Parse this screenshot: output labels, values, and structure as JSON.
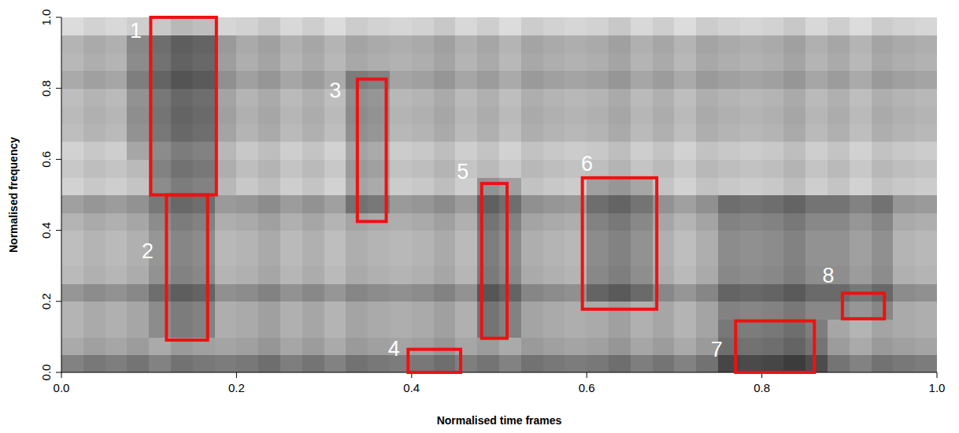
{
  "chart_data": {
    "type": "heatmap",
    "x_label": "Normalised time frames",
    "y_label": "Normalised frequency",
    "xlim": [
      0,
      1
    ],
    "ylim": [
      0,
      1
    ],
    "zlim": [
      0,
      1
    ],
    "xticks": [
      {
        "value": 0,
        "label": "0.0"
      },
      0.2,
      0.4,
      0.6,
      0.8,
      {
        "value": 1,
        "label": "1.0"
      }
    ],
    "yticks": [
      {
        "value": 0,
        "label": "0.0"
      },
      0.2,
      0.4,
      0.6,
      0.8,
      {
        "value": 1,
        "label": "1.0"
      }
    ],
    "cells": [
      [
        0.55,
        0.6,
        0.57,
        0.62,
        0.55,
        0.63,
        0.6,
        0.58,
        0.6,
        0.65,
        0.57,
        0.62,
        0.55,
        0.63,
        0.6,
        0.58,
        0.6,
        0.65,
        0.57,
        0.62,
        0.55,
        0.63,
        0.6,
        0.58,
        0.6,
        0.65,
        0.57,
        0.62,
        0.55,
        0.63,
        0.85,
        0.83,
        0.85,
        0.9,
        0.82,
        0.62,
        0.55,
        0.63,
        0.6,
        0.58
      ],
      [
        0.35,
        0.4,
        0.37,
        0.42,
        0.35,
        0.43,
        0.4,
        0.38,
        0.4,
        0.45,
        0.37,
        0.42,
        0.35,
        0.43,
        0.4,
        0.38,
        0.4,
        0.45,
        0.37,
        0.42,
        0.35,
        0.43,
        0.4,
        0.38,
        0.4,
        0.45,
        0.37,
        0.42,
        0.35,
        0.43,
        0.65,
        0.63,
        0.65,
        0.7,
        0.62,
        0.42,
        0.35,
        0.43,
        0.4,
        0.38
      ],
      [
        0.3,
        0.35,
        0.32,
        0.37,
        0.5,
        0.58,
        0.55,
        0.33,
        0.35,
        0.4,
        0.32,
        0.37,
        0.3,
        0.38,
        0.35,
        0.33,
        0.35,
        0.4,
        0.32,
        0.62,
        0.55,
        0.38,
        0.35,
        0.33,
        0.35,
        0.4,
        0.32,
        0.37,
        0.3,
        0.38,
        0.6,
        0.58,
        0.6,
        0.65,
        0.57,
        0.37,
        0.3,
        0.38,
        0.35,
        0.33
      ],
      [
        0.3,
        0.35,
        0.32,
        0.37,
        0.5,
        0.58,
        0.55,
        0.33,
        0.35,
        0.4,
        0.32,
        0.37,
        0.3,
        0.38,
        0.35,
        0.33,
        0.35,
        0.4,
        0.32,
        0.62,
        0.55,
        0.38,
        0.35,
        0.33,
        0.35,
        0.4,
        0.32,
        0.37,
        0.3,
        0.38,
        0.55,
        0.53,
        0.55,
        0.6,
        0.52,
        0.52,
        0.45,
        0.53,
        0.35,
        0.33
      ],
      [
        0.45,
        0.5,
        0.47,
        0.52,
        0.65,
        0.73,
        0.7,
        0.48,
        0.5,
        0.55,
        0.47,
        0.52,
        0.45,
        0.53,
        0.5,
        0.48,
        0.5,
        0.55,
        0.47,
        0.77,
        0.7,
        0.53,
        0.5,
        0.48,
        0.7,
        0.75,
        0.67,
        0.52,
        0.45,
        0.53,
        0.7,
        0.68,
        0.7,
        0.75,
        0.67,
        0.67,
        0.6,
        0.68,
        0.5,
        0.48
      ],
      [
        0.27,
        0.32,
        0.29,
        0.34,
        0.47,
        0.55,
        0.52,
        0.3,
        0.32,
        0.37,
        0.29,
        0.34,
        0.27,
        0.35,
        0.32,
        0.3,
        0.32,
        0.37,
        0.29,
        0.59,
        0.52,
        0.35,
        0.32,
        0.3,
        0.52,
        0.57,
        0.49,
        0.34,
        0.27,
        0.35,
        0.52,
        0.5,
        0.52,
        0.57,
        0.49,
        0.49,
        0.42,
        0.5,
        0.32,
        0.3
      ],
      [
        0.25,
        0.3,
        0.27,
        0.32,
        0.45,
        0.53,
        0.5,
        0.28,
        0.3,
        0.35,
        0.27,
        0.32,
        0.25,
        0.33,
        0.3,
        0.28,
        0.3,
        0.35,
        0.27,
        0.57,
        0.5,
        0.33,
        0.3,
        0.28,
        0.5,
        0.55,
        0.47,
        0.32,
        0.25,
        0.33,
        0.5,
        0.48,
        0.5,
        0.55,
        0.47,
        0.47,
        0.4,
        0.48,
        0.3,
        0.28
      ],
      [
        0.25,
        0.3,
        0.27,
        0.32,
        0.45,
        0.53,
        0.5,
        0.28,
        0.3,
        0.35,
        0.27,
        0.32,
        0.25,
        0.33,
        0.3,
        0.28,
        0.3,
        0.35,
        0.27,
        0.57,
        0.5,
        0.33,
        0.3,
        0.28,
        0.5,
        0.55,
        0.47,
        0.32,
        0.25,
        0.33,
        0.5,
        0.48,
        0.5,
        0.55,
        0.47,
        0.47,
        0.4,
        0.48,
        0.3,
        0.28
      ],
      [
        0.3,
        0.35,
        0.32,
        0.37,
        0.5,
        0.58,
        0.55,
        0.33,
        0.35,
        0.4,
        0.32,
        0.37,
        0.3,
        0.38,
        0.35,
        0.33,
        0.35,
        0.4,
        0.32,
        0.62,
        0.55,
        0.38,
        0.35,
        0.33,
        0.55,
        0.6,
        0.52,
        0.37,
        0.3,
        0.38,
        0.55,
        0.53,
        0.55,
        0.6,
        0.52,
        0.52,
        0.45,
        0.53,
        0.35,
        0.33
      ],
      [
        0.4,
        0.45,
        0.42,
        0.47,
        0.6,
        0.68,
        0.65,
        0.43,
        0.45,
        0.5,
        0.42,
        0.47,
        0.4,
        0.63,
        0.6,
        0.43,
        0.45,
        0.5,
        0.42,
        0.72,
        0.65,
        0.48,
        0.45,
        0.43,
        0.65,
        0.7,
        0.62,
        0.47,
        0.4,
        0.48,
        0.65,
        0.63,
        0.65,
        0.7,
        0.62,
        0.62,
        0.55,
        0.63,
        0.45,
        0.43
      ],
      [
        0.15,
        0.2,
        0.17,
        0.22,
        0.5,
        0.58,
        0.55,
        0.28,
        0.2,
        0.25,
        0.17,
        0.22,
        0.15,
        0.38,
        0.35,
        0.18,
        0.2,
        0.25,
        0.17,
        0.47,
        0.4,
        0.23,
        0.2,
        0.18,
        0.4,
        0.45,
        0.37,
        0.22,
        0.15,
        0.23,
        0.2,
        0.18,
        0.2,
        0.25,
        0.17,
        0.22,
        0.15,
        0.23,
        0.2,
        0.18
      ],
      [
        0.2,
        0.25,
        0.22,
        0.27,
        0.55,
        0.63,
        0.6,
        0.33,
        0.25,
        0.3,
        0.22,
        0.27,
        0.2,
        0.43,
        0.4,
        0.23,
        0.25,
        0.3,
        0.22,
        0.27,
        0.2,
        0.28,
        0.25,
        0.23,
        0.25,
        0.3,
        0.22,
        0.27,
        0.2,
        0.28,
        0.25,
        0.23,
        0.25,
        0.3,
        0.22,
        0.27,
        0.2,
        0.28,
        0.25,
        0.23
      ],
      [
        0.15,
        0.2,
        0.17,
        0.37,
        0.5,
        0.58,
        0.55,
        0.28,
        0.2,
        0.25,
        0.17,
        0.22,
        0.15,
        0.38,
        0.35,
        0.18,
        0.2,
        0.25,
        0.17,
        0.22,
        0.15,
        0.23,
        0.2,
        0.18,
        0.2,
        0.25,
        0.17,
        0.22,
        0.15,
        0.23,
        0.2,
        0.18,
        0.2,
        0.25,
        0.17,
        0.22,
        0.15,
        0.23,
        0.2,
        0.18
      ],
      [
        0.25,
        0.3,
        0.27,
        0.47,
        0.6,
        0.68,
        0.65,
        0.38,
        0.3,
        0.35,
        0.27,
        0.32,
        0.25,
        0.48,
        0.45,
        0.28,
        0.3,
        0.35,
        0.27,
        0.32,
        0.25,
        0.33,
        0.3,
        0.28,
        0.3,
        0.35,
        0.27,
        0.32,
        0.25,
        0.33,
        0.3,
        0.28,
        0.3,
        0.35,
        0.27,
        0.32,
        0.25,
        0.33,
        0.3,
        0.28
      ],
      [
        0.27,
        0.32,
        0.29,
        0.49,
        0.62,
        0.7,
        0.67,
        0.4,
        0.32,
        0.37,
        0.29,
        0.34,
        0.27,
        0.5,
        0.47,
        0.3,
        0.32,
        0.37,
        0.29,
        0.34,
        0.27,
        0.35,
        0.32,
        0.3,
        0.32,
        0.37,
        0.29,
        0.34,
        0.27,
        0.35,
        0.32,
        0.3,
        0.32,
        0.37,
        0.29,
        0.34,
        0.27,
        0.35,
        0.32,
        0.3
      ],
      [
        0.25,
        0.3,
        0.27,
        0.47,
        0.6,
        0.68,
        0.65,
        0.38,
        0.3,
        0.35,
        0.27,
        0.32,
        0.25,
        0.48,
        0.45,
        0.28,
        0.3,
        0.35,
        0.27,
        0.32,
        0.25,
        0.33,
        0.3,
        0.28,
        0.3,
        0.35,
        0.27,
        0.32,
        0.25,
        0.33,
        0.3,
        0.28,
        0.3,
        0.35,
        0.27,
        0.32,
        0.25,
        0.33,
        0.3,
        0.28
      ],
      [
        0.35,
        0.4,
        0.37,
        0.57,
        0.7,
        0.78,
        0.75,
        0.48,
        0.4,
        0.45,
        0.37,
        0.42,
        0.35,
        0.58,
        0.55,
        0.38,
        0.4,
        0.45,
        0.37,
        0.42,
        0.35,
        0.43,
        0.4,
        0.38,
        0.4,
        0.45,
        0.37,
        0.42,
        0.35,
        0.43,
        0.4,
        0.38,
        0.4,
        0.45,
        0.37,
        0.42,
        0.35,
        0.43,
        0.4,
        0.38
      ],
      [
        0.28,
        0.33,
        0.3,
        0.5,
        0.63,
        0.71,
        0.68,
        0.41,
        0.33,
        0.38,
        0.3,
        0.35,
        0.28,
        0.36,
        0.33,
        0.31,
        0.33,
        0.38,
        0.3,
        0.35,
        0.28,
        0.36,
        0.33,
        0.31,
        0.33,
        0.38,
        0.3,
        0.35,
        0.28,
        0.36,
        0.33,
        0.31,
        0.33,
        0.38,
        0.3,
        0.35,
        0.28,
        0.36,
        0.33,
        0.31
      ],
      [
        0.3,
        0.35,
        0.32,
        0.52,
        0.65,
        0.73,
        0.7,
        0.43,
        0.35,
        0.4,
        0.32,
        0.37,
        0.3,
        0.38,
        0.35,
        0.33,
        0.35,
        0.4,
        0.32,
        0.37,
        0.3,
        0.38,
        0.35,
        0.33,
        0.35,
        0.4,
        0.32,
        0.37,
        0.3,
        0.38,
        0.35,
        0.33,
        0.35,
        0.4,
        0.32,
        0.37,
        0.3,
        0.38,
        0.35,
        0.33
      ],
      [
        0.1,
        0.15,
        0.12,
        0.17,
        0.2,
        0.28,
        0.25,
        0.13,
        0.15,
        0.2,
        0.12,
        0.17,
        0.1,
        0.18,
        0.15,
        0.13,
        0.15,
        0.2,
        0.12,
        0.17,
        0.1,
        0.18,
        0.15,
        0.13,
        0.15,
        0.2,
        0.12,
        0.17,
        0.1,
        0.18,
        0.15,
        0.13,
        0.15,
        0.2,
        0.12,
        0.17,
        0.1,
        0.18,
        0.15,
        0.13
      ]
    ],
    "annotations": [
      {
        "label": "1",
        "x": [
          0.102,
          0.177
        ],
        "y": [
          0.5,
          1.0
        ]
      },
      {
        "label": "2",
        "x": [
          0.12,
          0.167
        ],
        "y": [
          0.091,
          0.5
        ]
      },
      {
        "label": "3",
        "x": [
          0.338,
          0.371
        ],
        "y": [
          0.425,
          0.826
        ]
      },
      {
        "label": "4",
        "x": [
          0.396,
          0.456
        ],
        "y": [
          0.0,
          0.065
        ]
      },
      {
        "label": "5",
        "x": [
          0.48,
          0.509
        ],
        "y": [
          0.096,
          0.532
        ]
      },
      {
        "label": "6",
        "x": [
          0.595,
          0.68
        ],
        "y": [
          0.178,
          0.548
        ]
      },
      {
        "label": "7",
        "x": [
          0.77,
          0.86
        ],
        "y": [
          0.0,
          0.145
        ]
      },
      {
        "label": "8",
        "x": [
          0.892,
          0.94
        ],
        "y": [
          0.151,
          0.223
        ]
      }
    ]
  }
}
